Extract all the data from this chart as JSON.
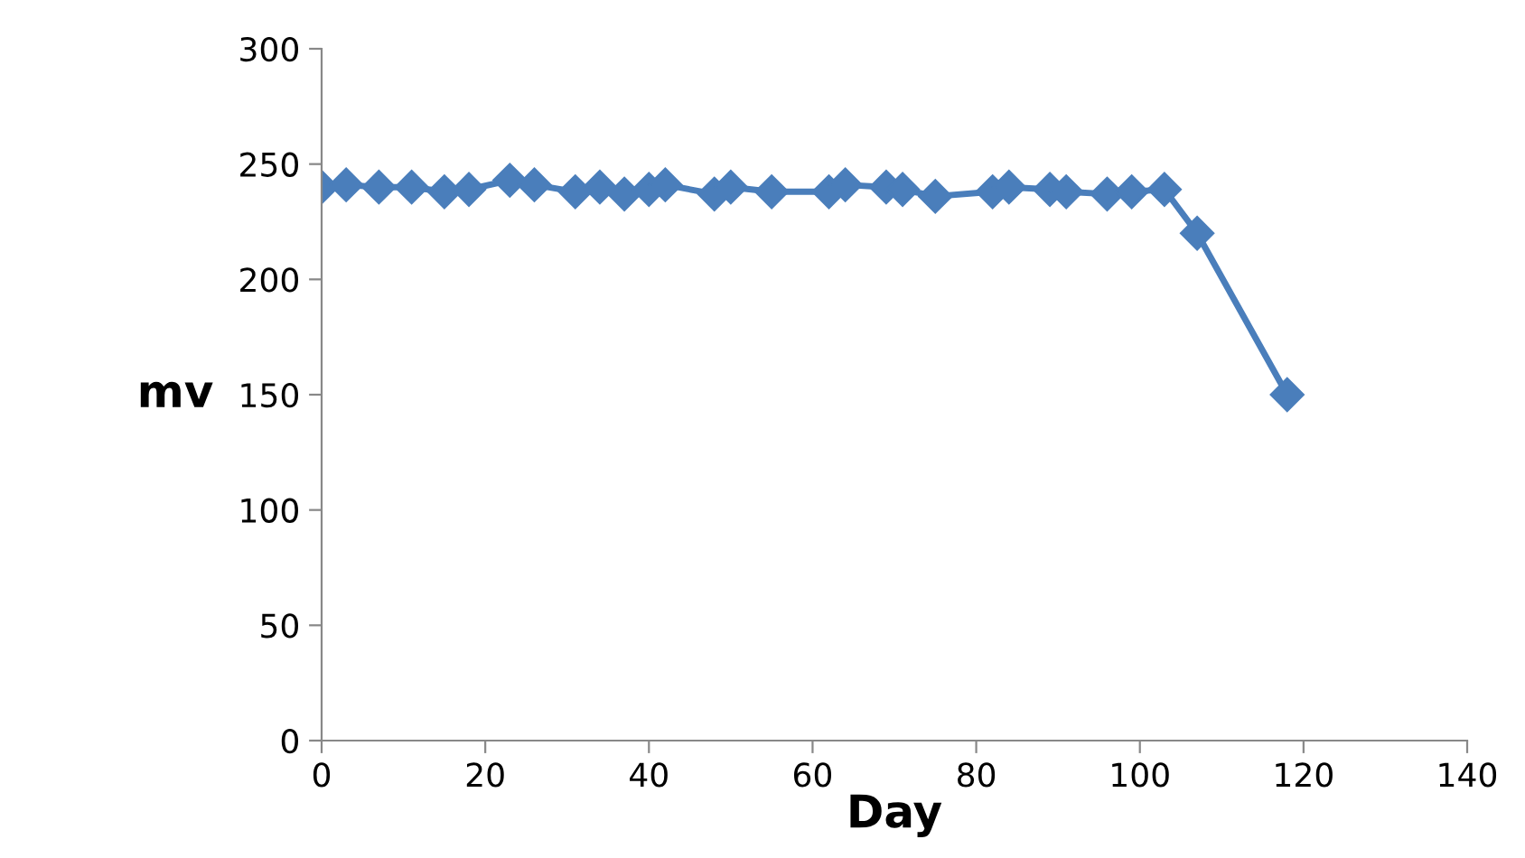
{
  "chart_data": {
    "type": "line",
    "xlabel": "Day",
    "ylabel": "mv",
    "x": [
      0,
      3,
      7,
      11,
      15,
      18,
      23,
      26,
      31,
      34,
      37,
      40,
      42,
      48,
      50,
      55,
      62,
      64,
      69,
      71,
      75,
      82,
      84,
      89,
      91,
      96,
      99,
      103,
      107,
      118
    ],
    "series": [
      {
        "color": "#4a7ebb",
        "values": [
          240,
          241,
          240,
          240,
          238,
          239,
          243,
          241,
          238,
          240,
          237,
          239,
          241,
          237,
          240,
          238,
          238,
          241,
          240,
          239,
          236,
          238,
          240,
          239,
          238,
          237,
          238,
          239,
          220,
          150
        ]
      }
    ],
    "xlim": [
      0,
      140
    ],
    "xticks": [
      0,
      20,
      40,
      60,
      80,
      100,
      120,
      140
    ],
    "ylim": [
      0,
      300
    ],
    "yticks": [
      0,
      50,
      100,
      150,
      200,
      250,
      300
    ],
    "marker": "diamond",
    "line_style": "solid",
    "grid": false,
    "legend": false
  }
}
